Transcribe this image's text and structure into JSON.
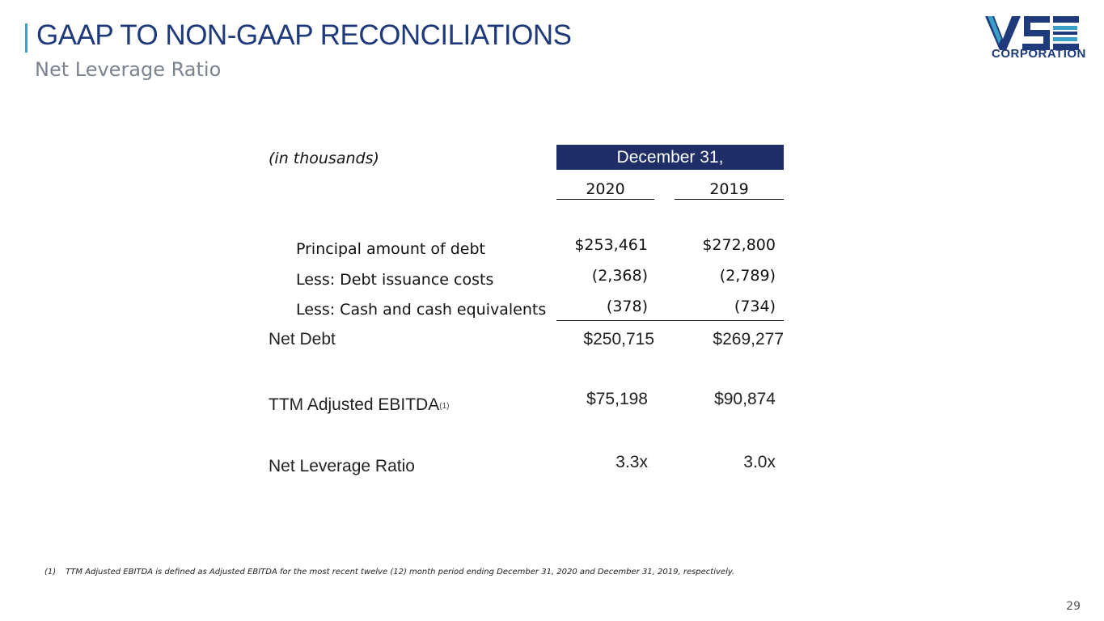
{
  "header": {
    "title": "GAAP TO NON-GAAP RECONCILIATIONS",
    "subtitle": "Net Leverage Ratio"
  },
  "logo": {
    "mark": "VSE",
    "word": "CORPORATION",
    "color": "#1f3a7a"
  },
  "table": {
    "units_label": "(in thousands)",
    "period_header": "December 31,",
    "columns": [
      "2020",
      "2019"
    ],
    "rows": [
      {
        "label": "Principal amount of debt",
        "values": [
          "$253,461",
          "$272,800"
        ]
      },
      {
        "label": "Less: Debt issuance costs",
        "values": [
          "(2,368)",
          "(2,789)"
        ]
      },
      {
        "label": "Less: Cash and cash equivalents",
        "values": [
          "(378)",
          "(734)"
        ]
      },
      {
        "label": "Net Debt",
        "values": [
          "$250,715",
          "$269,277"
        ]
      },
      {
        "label": "TTM Adjusted EBITDA",
        "note": "(1)",
        "values": [
          "$75,198",
          "$90,874"
        ]
      },
      {
        "label": "Net Leverage Ratio",
        "values": [
          "3.3x",
          "3.0x"
        ]
      }
    ]
  },
  "footnote": {
    "marker": "(1)",
    "text": "TTM Adjusted EBITDA is defined as Adjusted EBITDA for the most recent twelve (12) month period ending December 31, 2020 and December 31, 2019, respectively."
  },
  "page_number": "29",
  "colors": {
    "accent": "#3aa0c8",
    "header_fill": "#1f2e66",
    "title": "#1f3a7a",
    "subtitle": "#7b8390"
  }
}
